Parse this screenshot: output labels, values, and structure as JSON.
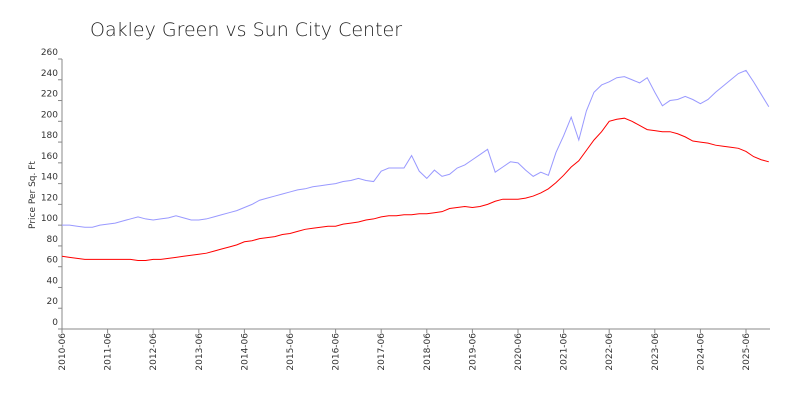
{
  "chart_data": {
    "type": "line",
    "title": "Oakley Green vs Sun City Center",
    "y_label": "Price Per Sq. Ft",
    "categories": [
      "2010-06",
      null,
      null,
      null,
      null,
      null,
      "2011-06",
      null,
      null,
      null,
      null,
      null,
      "2012-06",
      null,
      null,
      null,
      null,
      null,
      "2013-06",
      null,
      null,
      null,
      null,
      null,
      "2014-06",
      null,
      null,
      null,
      null,
      null,
      "2015-06",
      null,
      null,
      null,
      null,
      null,
      "2016-06",
      null,
      null,
      null,
      null,
      null,
      "2017-06",
      null,
      null,
      null,
      null,
      null,
      "2018-06",
      null,
      null,
      null,
      null,
      null,
      "2019-06",
      null,
      null,
      null,
      null,
      null,
      "2020-06",
      null,
      null,
      null,
      null,
      null,
      "2021-06",
      null,
      null,
      null,
      null,
      null,
      "2022-06",
      null,
      null,
      null,
      null,
      null,
      "2023-06",
      null,
      null,
      null,
      null,
      null,
      "2024-06",
      null,
      null,
      null,
      null,
      null,
      "2025-06",
      null,
      null,
      null
    ],
    "series": [
      {
        "color": "#9999ff",
        "values": [
          100,
          100,
          99,
          98,
          98,
          100,
          101,
          102,
          104,
          106,
          108,
          106,
          105,
          106,
          107,
          109,
          107,
          105,
          105,
          106,
          108,
          110,
          112,
          114,
          117,
          120,
          124,
          126,
          128,
          130,
          132,
          134,
          135,
          137,
          138,
          139,
          140,
          142,
          143,
          145,
          143,
          142,
          152,
          155,
          155,
          155,
          167,
          152,
          145,
          153,
          147,
          149,
          155,
          158,
          163,
          168,
          173,
          151,
          156,
          161,
          160,
          153,
          147,
          151,
          148,
          170,
          186,
          204,
          182,
          210,
          228,
          235,
          238,
          242,
          243,
          240,
          237,
          242,
          228,
          215,
          220,
          221,
          224,
          221,
          217,
          221,
          228,
          234,
          240,
          246,
          249,
          238,
          226,
          214
        ]
      },
      {
        "color": "#ff0000",
        "values": [
          70,
          69,
          68,
          67,
          67,
          67,
          67,
          67,
          67,
          67,
          66,
          66,
          67,
          67,
          68,
          69,
          70,
          71,
          72,
          73,
          75,
          77,
          79,
          81,
          84,
          85,
          87,
          88,
          89,
          91,
          92,
          94,
          96,
          97,
          98,
          99,
          99,
          101,
          102,
          103,
          105,
          106,
          108,
          109,
          109,
          110,
          110,
          111,
          111,
          112,
          113,
          116,
          117,
          118,
          117,
          118,
          120,
          123,
          125,
          125,
          125,
          126,
          128,
          131,
          135,
          141,
          148,
          156,
          162,
          172,
          182,
          190,
          200,
          202,
          203,
          200,
          196,
          192,
          191,
          190,
          190,
          188,
          185,
          181,
          180,
          179,
          177,
          176,
          175,
          174,
          171,
          166,
          163,
          161
        ]
      }
    ],
    "ylim": [
      0,
      260
    ],
    "yticks": [
      0,
      20,
      40,
      60,
      80,
      100,
      120,
      140,
      160,
      180,
      200,
      220,
      240,
      260
    ]
  }
}
